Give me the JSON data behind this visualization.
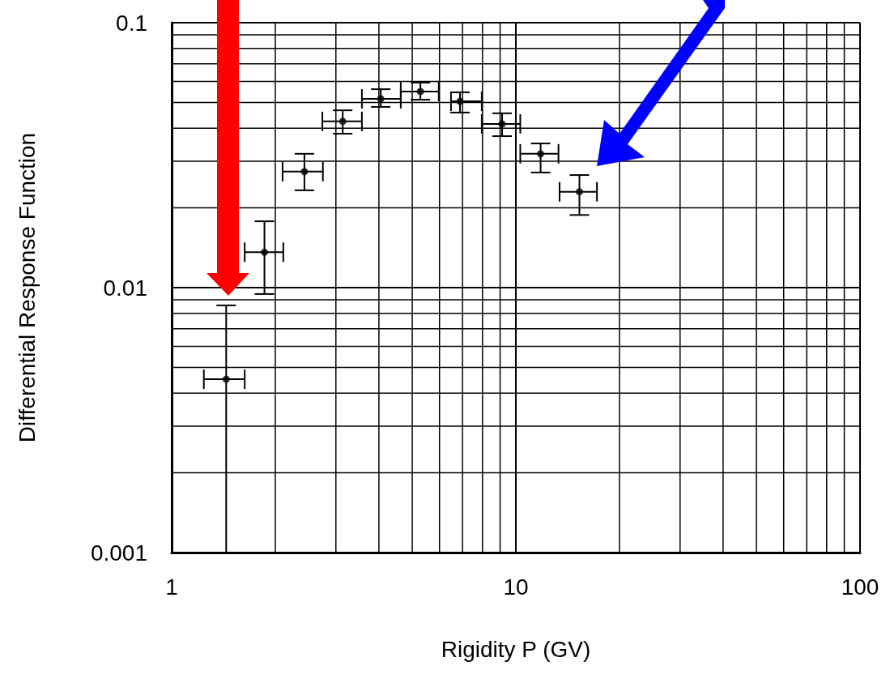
{
  "chart_data": {
    "type": "scatter",
    "xlabel": "Rigidity P (GV)",
    "ylabel": "Differential Response Function",
    "x": [
      1.44,
      1.86,
      2.43,
      3.14,
      4.05,
      5.28,
      6.88,
      9.12,
      11.8,
      15.3
    ],
    "values": [
      0.00451,
      0.0136,
      0.0274,
      0.0424,
      0.0516,
      0.055,
      0.0505,
      0.0415,
      0.032,
      0.023
    ],
    "errors": [
      [
        0.001,
        0.00857
      ],
      [
        0.00946,
        0.0178
      ],
      [
        0.0233,
        0.032
      ],
      [
        0.0381,
        0.0467
      ],
      [
        0.0481,
        0.0561
      ],
      [
        0.0512,
        0.0594
      ],
      [
        0.0458,
        0.0546
      ],
      [
        0.0373,
        0.0455
      ],
      [
        0.0272,
        0.035
      ],
      [
        0.0188,
        0.0266
      ]
    ],
    "xerrors": [
      [
        1.24,
        1.63
      ],
      [
        1.63,
        2.11
      ],
      [
        2.1,
        2.75
      ],
      [
        2.74,
        3.57
      ],
      [
        3.57,
        4.63
      ],
      [
        4.63,
        5.97
      ],
      [
        6.48,
        7.96
      ],
      [
        7.96,
        10.3
      ],
      [
        10.3,
        13.3
      ],
      [
        13.4,
        17.2
      ]
    ],
    "color": "#000000",
    "marker": "circle",
    "log": "xy",
    "grid": true,
    "xlim": [
      1,
      100
    ],
    "xticks": [
      1,
      10,
      100
    ],
    "ylim": [
      0.001,
      0.1
    ],
    "yticks": [
      0.001,
      0.01,
      0.1
    ]
  }
}
